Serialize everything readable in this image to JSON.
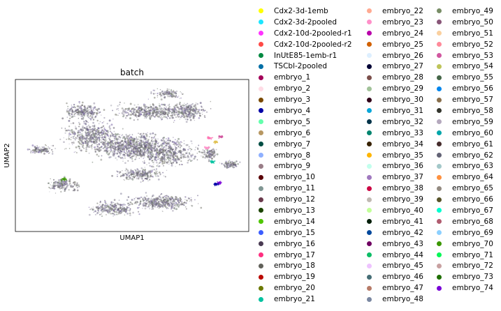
{
  "chart_data": {
    "type": "scatter",
    "title": "batch",
    "xlabel": "UMAP1",
    "ylabel": "UMAP2",
    "grid": false,
    "x_ticks": [],
    "y_ticks": [],
    "legend_placement": "right",
    "series": [
      {
        "name": "Cdx2-3d-1emb",
        "color": "#ffff00"
      },
      {
        "name": "Cdx2-3d-2pooled",
        "color": "#1ce6ff"
      },
      {
        "name": "Cdx2-10d-2pooled-r1",
        "color": "#ff34ff"
      },
      {
        "name": "Cdx2-10d-2pooled-r2",
        "color": "#ff4a46"
      },
      {
        "name": "InUtE85-1emb-r1",
        "color": "#008941"
      },
      {
        "name": "TSCbl-2pooled",
        "color": "#006fa6"
      },
      {
        "name": "embryo_1",
        "color": "#a30059"
      },
      {
        "name": "embryo_2",
        "color": "#ffdbe5"
      },
      {
        "name": "embryo_3",
        "color": "#7a4900"
      },
      {
        "name": "embryo_4",
        "color": "#0000a6"
      },
      {
        "name": "embryo_5",
        "color": "#63ffac"
      },
      {
        "name": "embryo_6",
        "color": "#b79762"
      },
      {
        "name": "embryo_7",
        "color": "#004d43"
      },
      {
        "name": "embryo_8",
        "color": "#8fb0ff"
      },
      {
        "name": "embryo_9",
        "color": "#997d87"
      },
      {
        "name": "embryo_10",
        "color": "#5a0007"
      },
      {
        "name": "embryo_11",
        "color": "#809693"
      },
      {
        "name": "embryo_12",
        "color": "#6a3a4c"
      },
      {
        "name": "embryo_13",
        "color": "#1b4400"
      },
      {
        "name": "embryo_14",
        "color": "#4fc601"
      },
      {
        "name": "embryo_15",
        "color": "#3b5dff"
      },
      {
        "name": "embryo_16",
        "color": "#4a3b53"
      },
      {
        "name": "embryo_17",
        "color": "#ff2f80"
      },
      {
        "name": "embryo_18",
        "color": "#61615a"
      },
      {
        "name": "embryo_19",
        "color": "#ba0900"
      },
      {
        "name": "embryo_20",
        "color": "#6b7900"
      },
      {
        "name": "embryo_21",
        "color": "#00c2a0"
      },
      {
        "name": "embryo_22",
        "color": "#ffaa92"
      },
      {
        "name": "embryo_23",
        "color": "#ff90c9"
      },
      {
        "name": "embryo_24",
        "color": "#b903aa"
      },
      {
        "name": "embryo_25",
        "color": "#d16100"
      },
      {
        "name": "embryo_26",
        "color": "#ddefff"
      },
      {
        "name": "embryo_27",
        "color": "#000035"
      },
      {
        "name": "embryo_28",
        "color": "#7b4f4b"
      },
      {
        "name": "embryo_29",
        "color": "#a1c299"
      },
      {
        "name": "embryo_30",
        "color": "#300018"
      },
      {
        "name": "embryo_31",
        "color": "#0aa6d8"
      },
      {
        "name": "embryo_32",
        "color": "#013349"
      },
      {
        "name": "embryo_33",
        "color": "#00846f"
      },
      {
        "name": "embryo_34",
        "color": "#372101"
      },
      {
        "name": "embryo_35",
        "color": "#ffb500"
      },
      {
        "name": "embryo_36",
        "color": "#c2ffed"
      },
      {
        "name": "embryo_37",
        "color": "#a079bf"
      },
      {
        "name": "embryo_38",
        "color": "#cc0744"
      },
      {
        "name": "embryo_39",
        "color": "#c0b9b2"
      },
      {
        "name": "embryo_40",
        "color": "#c2ff99"
      },
      {
        "name": "embryo_41",
        "color": "#001e09"
      },
      {
        "name": "embryo_42",
        "color": "#00489c"
      },
      {
        "name": "embryo_43",
        "color": "#6f0062"
      },
      {
        "name": "embryo_44",
        "color": "#0cbd66"
      },
      {
        "name": "embryo_45",
        "color": "#eec3ff"
      },
      {
        "name": "embryo_46",
        "color": "#456d75"
      },
      {
        "name": "embryo_47",
        "color": "#b77b68"
      },
      {
        "name": "embryo_48",
        "color": "#7a87a1"
      },
      {
        "name": "embryo_49",
        "color": "#788d66"
      },
      {
        "name": "embryo_50",
        "color": "#885578"
      },
      {
        "name": "embryo_51",
        "color": "#fad09f"
      },
      {
        "name": "embryo_52",
        "color": "#ff8a9a"
      },
      {
        "name": "embryo_53",
        "color": "#d157a0"
      },
      {
        "name": "embryo_54",
        "color": "#bec459"
      },
      {
        "name": "embryo_55",
        "color": "#456648"
      },
      {
        "name": "embryo_56",
        "color": "#0086ed"
      },
      {
        "name": "embryo_57",
        "color": "#886f4c"
      },
      {
        "name": "embryo_58",
        "color": "#34362d"
      },
      {
        "name": "embryo_59",
        "color": "#b4a8bd"
      },
      {
        "name": "embryo_60",
        "color": "#00a6aa"
      },
      {
        "name": "embryo_61",
        "color": "#452c2c"
      },
      {
        "name": "embryo_62",
        "color": "#636375"
      },
      {
        "name": "embryo_63",
        "color": "#a3c8c9"
      },
      {
        "name": "embryo_64",
        "color": "#ff913f"
      },
      {
        "name": "embryo_65",
        "color": "#938a81"
      },
      {
        "name": "embryo_66",
        "color": "#575329"
      },
      {
        "name": "embryo_67",
        "color": "#00fecf"
      },
      {
        "name": "embryo_68",
        "color": "#b05b6f"
      },
      {
        "name": "embryo_69",
        "color": "#8cd0ff"
      },
      {
        "name": "embryo_70",
        "color": "#3b9700"
      },
      {
        "name": "embryo_71",
        "color": "#04f757"
      },
      {
        "name": "embryo_72",
        "color": "#c8a1a1"
      },
      {
        "name": "embryo_73",
        "color": "#1e6e00"
      },
      {
        "name": "embryo_74",
        "color": "#7900d7"
      }
    ]
  }
}
